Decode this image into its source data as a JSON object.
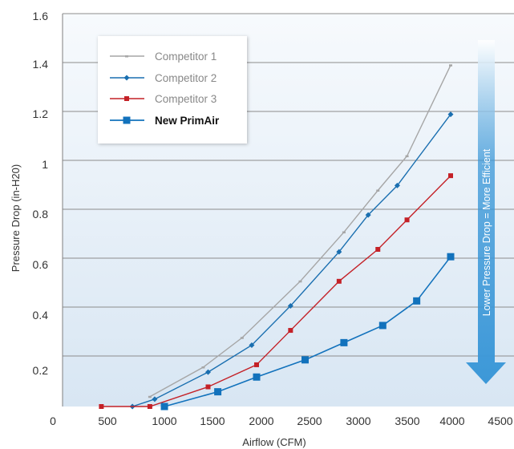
{
  "colors": {
    "competitor1": "#a6a6a6",
    "competitor2": "#1a6fb0",
    "competitor3": "#c42127",
    "primair": "#1272bc",
    "plot_bg_top": "#f7fafd",
    "plot_bg_bottom": "#d8e6f3",
    "arrow_top": "#ffffff",
    "arrow_bottom": "#3c98d8"
  },
  "chart_data": {
    "type": "line",
    "xlabel": "Airflow (CFM)",
    "ylabel": "Pressure Drop (in-H20)",
    "xlim": [
      0,
      4500
    ],
    "ylim": [
      0,
      1.6
    ],
    "x_ticks": [
      "0",
      "500",
      "1000",
      "1500",
      "2000",
      "2500",
      "3000",
      "3500",
      "4000",
      "4500"
    ],
    "y_ticks": [
      "0.2",
      "0.4",
      "0.6",
      "0.8",
      "1",
      "1.2",
      "1.4",
      "1.6"
    ],
    "grid": "horizontal",
    "legend_position": "top-left",
    "series": [
      {
        "name": "Competitor 1",
        "marker": "dash",
        "points": [
          [
            900,
            0.04
          ],
          [
            1450,
            0.16
          ],
          [
            1850,
            0.28
          ],
          [
            2450,
            0.51
          ],
          [
            2900,
            0.71
          ],
          [
            3250,
            0.88
          ],
          [
            3550,
            1.02
          ],
          [
            4000,
            1.39
          ]
        ]
      },
      {
        "name": "Competitor 2",
        "marker": "diamond",
        "points": [
          [
            720,
            0.0
          ],
          [
            950,
            0.03
          ],
          [
            1500,
            0.14
          ],
          [
            1950,
            0.25
          ],
          [
            2350,
            0.41
          ],
          [
            2850,
            0.63
          ],
          [
            3150,
            0.78
          ],
          [
            3450,
            0.9
          ],
          [
            4000,
            1.19
          ]
        ]
      },
      {
        "name": "Competitor 3",
        "marker": "square",
        "points": [
          [
            400,
            0.0
          ],
          [
            900,
            0.0
          ],
          [
            1500,
            0.08
          ],
          [
            2000,
            0.17
          ],
          [
            2350,
            0.31
          ],
          [
            2850,
            0.51
          ],
          [
            3250,
            0.64
          ],
          [
            3550,
            0.76
          ],
          [
            4000,
            0.94
          ]
        ]
      },
      {
        "name": "New PrimAir",
        "marker": "big-square",
        "bold": true,
        "points": [
          [
            1050,
            0.0
          ],
          [
            1600,
            0.06
          ],
          [
            2000,
            0.12
          ],
          [
            2500,
            0.19
          ],
          [
            2900,
            0.26
          ],
          [
            3300,
            0.33
          ],
          [
            3650,
            0.43
          ],
          [
            4000,
            0.61
          ]
        ]
      }
    ],
    "annotations": [
      {
        "text": "Lower Pressure Drop = More Efficient",
        "type": "downward-arrow"
      }
    ]
  }
}
